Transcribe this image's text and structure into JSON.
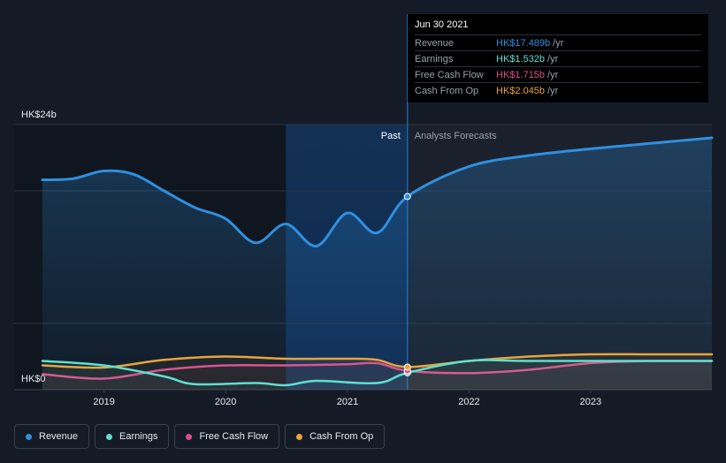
{
  "chart_data": {
    "type": "line",
    "y_axis": {
      "top_label": "HK$24b",
      "bottom_label": "HK$0",
      "ylim": [
        0,
        24
      ]
    },
    "x_axis": {
      "tick_labels": [
        "2019",
        "2020",
        "2021",
        "2022",
        "2023"
      ],
      "xlim": [
        "2018-06-30",
        "2023-12-31"
      ]
    },
    "past_label": "Past",
    "forecast_label": "Analysts Forecasts",
    "series": [
      {
        "name": "Revenue",
        "color": "#2f8fe0",
        "points": [
          [
            "2018-06-30",
            19.0
          ],
          [
            "2018-09-30",
            19.1
          ],
          [
            "2018-12-31",
            19.8
          ],
          [
            "2019-03-31",
            19.5
          ],
          [
            "2019-06-30",
            18.0
          ],
          [
            "2019-09-30",
            16.5
          ],
          [
            "2019-12-31",
            15.5
          ],
          [
            "2020-03-31",
            13.3
          ],
          [
            "2020-06-30",
            15.0
          ],
          [
            "2020-09-30",
            13.0
          ],
          [
            "2020-12-31",
            16.0
          ],
          [
            "2021-03-31",
            14.2
          ],
          [
            "2021-06-30",
            17.489
          ],
          [
            "2021-12-31",
            20.2
          ],
          [
            "2022-06-30",
            21.2
          ],
          [
            "2022-12-31",
            21.8
          ],
          [
            "2023-06-30",
            22.3
          ],
          [
            "2023-12-31",
            22.8
          ]
        ]
      },
      {
        "name": "Earnings",
        "color": "#5ee0d0",
        "points": [
          [
            "2018-06-30",
            2.6
          ],
          [
            "2018-12-31",
            2.2
          ],
          [
            "2019-06-30",
            1.2
          ],
          [
            "2019-09-30",
            0.5
          ],
          [
            "2020-03-31",
            0.6
          ],
          [
            "2020-06-30",
            0.4
          ],
          [
            "2020-09-30",
            0.8
          ],
          [
            "2021-03-31",
            0.6
          ],
          [
            "2021-06-30",
            1.532
          ],
          [
            "2021-12-31",
            2.6
          ],
          [
            "2022-06-30",
            2.6
          ],
          [
            "2023-06-30",
            2.6
          ],
          [
            "2023-12-31",
            2.6
          ]
        ]
      },
      {
        "name": "Free Cash Flow",
        "color": "#d94f90",
        "points": [
          [
            "2018-06-30",
            1.4
          ],
          [
            "2018-12-31",
            1.0
          ],
          [
            "2019-06-30",
            1.8
          ],
          [
            "2019-12-31",
            2.2
          ],
          [
            "2020-06-30",
            2.2
          ],
          [
            "2020-12-31",
            2.3
          ],
          [
            "2021-03-31",
            2.4
          ],
          [
            "2021-06-30",
            1.715
          ],
          [
            "2021-12-31",
            1.5
          ],
          [
            "2022-06-30",
            1.8
          ],
          [
            "2022-12-31",
            2.4
          ],
          [
            "2023-06-30",
            2.6
          ],
          [
            "2023-12-31",
            2.6
          ]
        ]
      },
      {
        "name": "Cash From Op",
        "color": "#e8a33c",
        "points": [
          [
            "2018-06-30",
            2.2
          ],
          [
            "2018-12-31",
            2.0
          ],
          [
            "2019-06-30",
            2.7
          ],
          [
            "2019-12-31",
            3.0
          ],
          [
            "2020-06-30",
            2.8
          ],
          [
            "2020-12-31",
            2.8
          ],
          [
            "2021-03-31",
            2.7
          ],
          [
            "2021-06-30",
            2.045
          ],
          [
            "2021-12-31",
            2.6
          ],
          [
            "2022-06-30",
            3.0
          ],
          [
            "2022-12-31",
            3.2
          ],
          [
            "2023-06-30",
            3.2
          ],
          [
            "2023-12-31",
            3.2
          ]
        ]
      }
    ],
    "tooltip": {
      "date": "Jun 30 2021",
      "rows": [
        {
          "label": "Revenue",
          "value": "HK$17.489b",
          "unit": "/yr",
          "color": "#2f8fe0"
        },
        {
          "label": "Earnings",
          "value": "HK$1.532b",
          "unit": "/yr",
          "color": "#5ee0d0"
        },
        {
          "label": "Free Cash Flow",
          "value": "HK$1.715b",
          "unit": "/yr",
          "color": "#d94f90"
        },
        {
          "label": "Cash From Op",
          "value": "HK$2.045b",
          "unit": "/yr",
          "color": "#e8a33c"
        }
      ]
    },
    "past_end": "2021-06-30",
    "highlight_start": "2020-06-30",
    "grid": true,
    "legend_position": "bottom-left"
  },
  "legend": [
    {
      "label": "Revenue",
      "color": "#2f8fe0"
    },
    {
      "label": "Earnings",
      "color": "#5ee0d0"
    },
    {
      "label": "Free Cash Flow",
      "color": "#d94f90"
    },
    {
      "label": "Cash From Op",
      "color": "#e8a33c"
    }
  ]
}
